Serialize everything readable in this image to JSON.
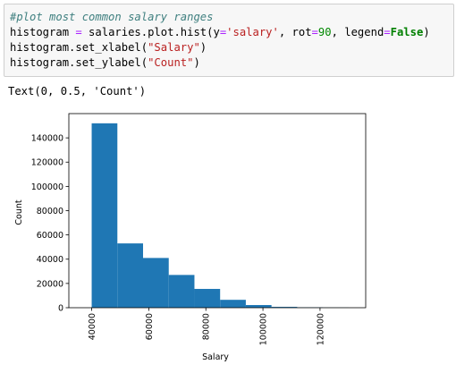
{
  "notebook": {
    "input_cell": {
      "lines": [
        [
          {
            "t": "#plot most common salary ranges",
            "c": "comment"
          }
        ],
        [
          {
            "t": "histogram ",
            "c": ""
          },
          {
            "t": "=",
            "c": "op"
          },
          {
            "t": " salaries.plot.hist(y",
            "c": ""
          },
          {
            "t": "=",
            "c": "op"
          },
          {
            "t": "'salary'",
            "c": "string"
          },
          {
            "t": ", rot",
            "c": ""
          },
          {
            "t": "=",
            "c": "op"
          },
          {
            "t": "90",
            "c": "num"
          },
          {
            "t": ", legend",
            "c": ""
          },
          {
            "t": "=",
            "c": "op"
          },
          {
            "t": "False",
            "c": "kw"
          },
          {
            "t": ")",
            "c": ""
          }
        ],
        [
          {
            "t": "histogram.set_xlabel(",
            "c": ""
          },
          {
            "t": "\"Salary\"",
            "c": "string"
          },
          {
            "t": ")",
            "c": ""
          }
        ],
        [
          {
            "t": "histogram.set_ylabel(",
            "c": ""
          },
          {
            "t": "\"Count\"",
            "c": "string"
          },
          {
            "t": ")",
            "c": ""
          }
        ]
      ]
    },
    "output_text": "Text(0, 0.5, 'Count')"
  },
  "chart_data": {
    "type": "bar",
    "title": "",
    "xlabel": "Salary",
    "ylabel": "Count",
    "bin_edges": [
      40000,
      49000,
      58000,
      67000,
      76000,
      85000,
      94000,
      103000,
      112000,
      121000,
      130000
    ],
    "values": [
      152000,
      53000,
      41000,
      27000,
      15500,
      6500,
      2200,
      700,
      300,
      100
    ],
    "xlim": [
      32000,
      136000
    ],
    "ylim": [
      0,
      160000
    ],
    "xticks": [
      40000,
      60000,
      80000,
      100000,
      120000
    ],
    "xtick_labels": [
      "40000",
      "60000",
      "80000",
      "100000",
      "120000"
    ],
    "xtick_rotation": 90,
    "yticks": [
      0,
      20000,
      40000,
      60000,
      80000,
      100000,
      120000,
      140000
    ],
    "ytick_labels": [
      "0",
      "20000",
      "40000",
      "60000",
      "80000",
      "100000",
      "120000",
      "140000"
    ],
    "bar_color": "#1f77b4",
    "legend": false,
    "grid": false
  }
}
